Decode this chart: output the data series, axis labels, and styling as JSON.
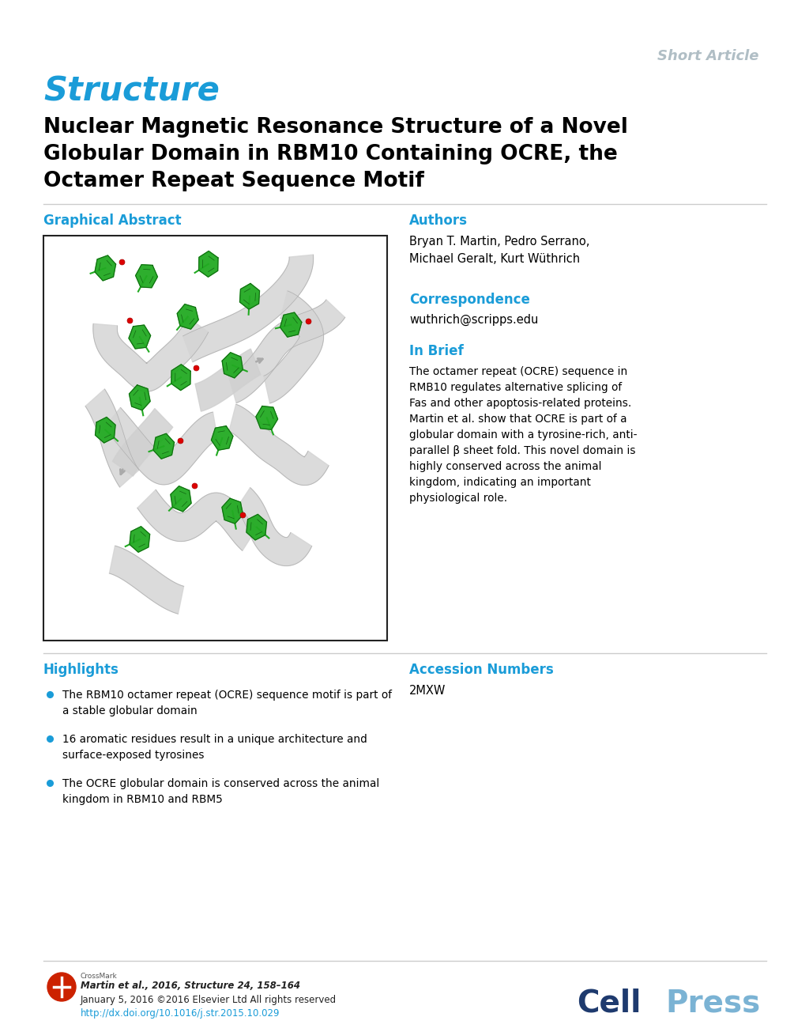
{
  "short_article_text": "Short Article",
  "short_article_color": "#b0bec5",
  "journal_title": "Structure",
  "journal_title_color": "#1a9cd8",
  "paper_title_line1": "Nuclear Magnetic Resonance Structure of a Novel",
  "paper_title_line2": "Globular Domain in RBM10 Containing OCRE, the",
  "paper_title_line3": "Octamer Repeat Sequence Motif",
  "paper_title_color": "#000000",
  "section_color": "#1a9cd8",
  "graphical_abstract_label": "Graphical Abstract",
  "authors_label": "Authors",
  "authors_text": "Bryan T. Martin, Pedro Serrano,\nMichael Geralt, Kurt Wüthrich",
  "correspondence_label": "Correspondence",
  "correspondence_text": "wuthrich@scripps.edu",
  "in_brief_label": "In Brief",
  "in_brief_text": "The octamer repeat (OCRE) sequence in\nRMB10 regulates alternative splicing of\nFas and other apoptosis-related proteins.\nMartin et al. show that OCRE is part of a\nglobular domain with a tyrosine-rich, anti-\nparallel β sheet fold. This novel domain is\nhighly conserved across the animal\nkingdom, indicating an important\nphysiological role.",
  "in_brief_italic_word": "Fas",
  "highlights_label": "Highlights",
  "highlight1": "The RBM10 octamer repeat (OCRE) sequence motif is part of\na stable globular domain",
  "highlight2": "16 aromatic residues result in a unique architecture and\nsurface-exposed tyrosines",
  "highlight3": "The OCRE globular domain is conserved across the animal\nkingdom in RBM10 and RBM5",
  "accession_label": "Accession Numbers",
  "accession_text": "2MXW",
  "footer_text1": "Martin et al., 2016, Structure 24, 158–164",
  "footer_text2": "January 5, 2016 ©2016 Elsevier Ltd All rights reserved",
  "footer_link": "http://dx.doi.org/10.1016/j.str.2015.10.029",
  "footer_link_color": "#1a9cd8",
  "cell_press_cell_color": "#1e3a6e",
  "cell_press_press_color": "#7bb3d4",
  "bullet_color": "#1a9cd8",
  "body_text_color": "#000000",
  "bg_color": "#ffffff"
}
